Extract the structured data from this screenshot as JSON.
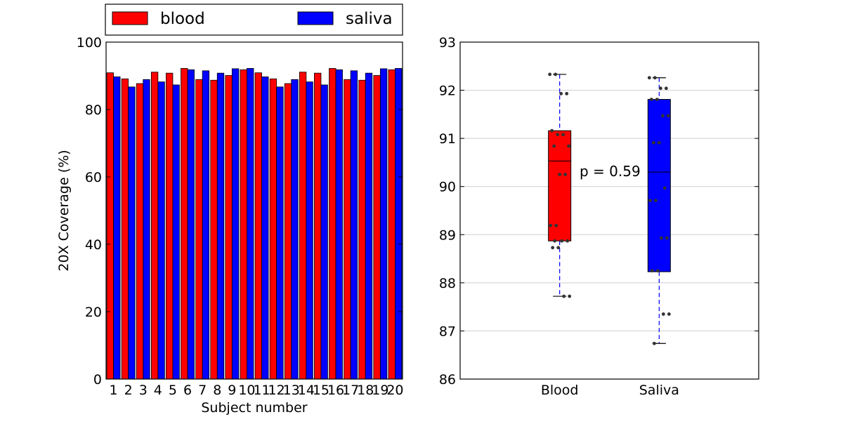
{
  "chart_data": [
    {
      "type": "bar",
      "xlabel": "Subject number",
      "ylabel": "20X Coverage (%)",
      "ylim": [
        0,
        100
      ],
      "yticks": [
        0,
        20,
        40,
        60,
        80,
        100
      ],
      "categories": [
        "1",
        "2",
        "3",
        "4",
        "5",
        "6",
        "7",
        "8",
        "9",
        "10",
        "11",
        "12",
        "13",
        "14",
        "15",
        "16",
        "17",
        "18",
        "19",
        "20"
      ],
      "legend": {
        "placement": "top",
        "columns": 2
      },
      "series": [
        {
          "name": "blood",
          "color": "#ff0000",
          "values": [
            90.9,
            89.1,
            87.7,
            91.1,
            90.8,
            92.2,
            88.9,
            88.7,
            90.1,
            91.8,
            90.9,
            89.1,
            87.7,
            91.1,
            90.8,
            92.2,
            88.9,
            88.7,
            90.1,
            91.8
          ]
        },
        {
          "name": "saliva",
          "color": "#0000ff",
          "values": [
            89.7,
            86.7,
            88.9,
            88.2,
            87.3,
            91.8,
            91.5,
            90.8,
            92.1,
            92.2,
            89.7,
            86.7,
            88.9,
            88.2,
            87.3,
            91.8,
            91.5,
            90.8,
            92.1,
            92.2
          ]
        }
      ]
    },
    {
      "type": "box",
      "categories": [
        "Blood",
        "Saliva"
      ],
      "ylim": [
        86,
        93
      ],
      "yticks": [
        86,
        87,
        88,
        89,
        90,
        91,
        92,
        93
      ],
      "grid": "horizontal",
      "annotation": "p = 0.59",
      "boxes": [
        {
          "name": "Blood",
          "color": "#ff0000",
          "whisker_low": 87.72,
          "q1": 88.87,
          "median": 90.53,
          "q3": 91.16,
          "whisker_high": 92.33
        },
        {
          "name": "Saliva",
          "color": "#0000ff",
          "whisker_low": 86.74,
          "q1": 88.23,
          "median": 90.3,
          "q3": 91.81,
          "whisker_high": 92.26
        }
      ],
      "points": [
        [
          92.33,
          92.33,
          91.93,
          91.93,
          91.16,
          91.08,
          91.08,
          90.84,
          90.84,
          90.25,
          90.25,
          89.19,
          89.19,
          88.87,
          88.87,
          88.73,
          88.73,
          87.72,
          87.72,
          88.87
        ],
        [
          92.26,
          92.26,
          92.04,
          92.04,
          91.81,
          91.81,
          91.47,
          91.47,
          90.91,
          90.91,
          89.97,
          89.71,
          89.71,
          88.93,
          88.93,
          88.25,
          88.25,
          87.35,
          87.35,
          86.74
        ]
      ]
    }
  ]
}
